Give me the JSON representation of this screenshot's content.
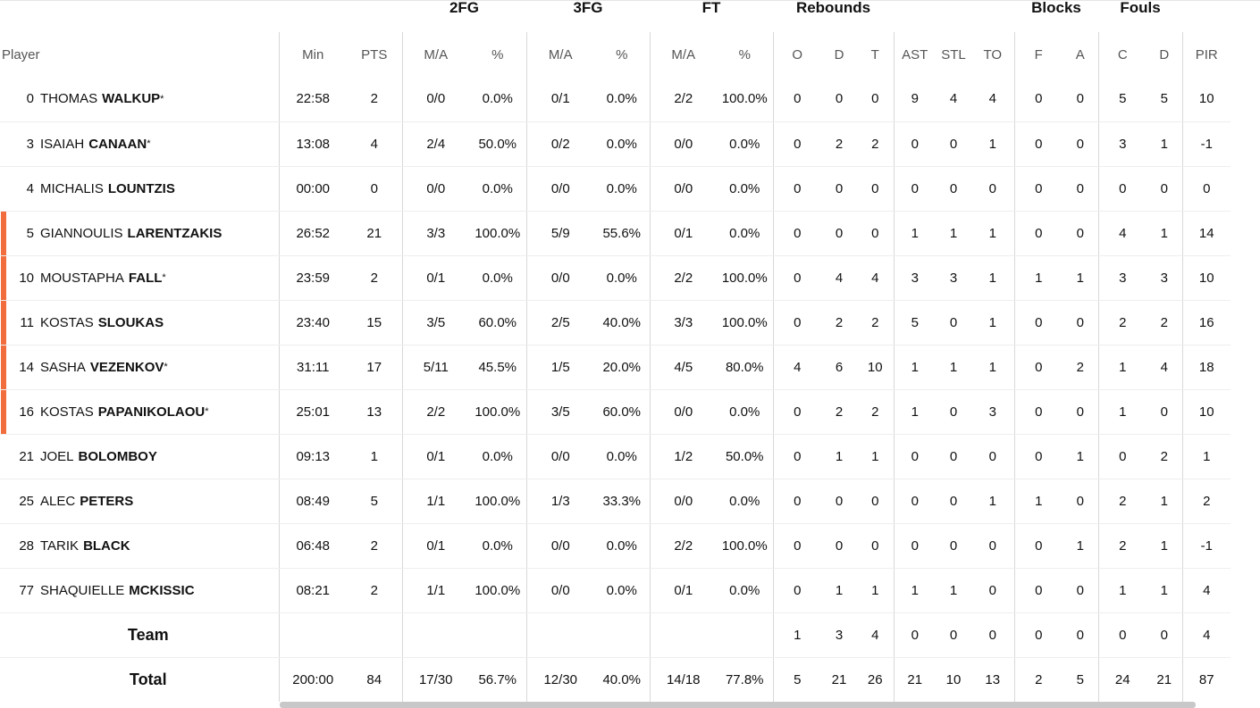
{
  "groups": {
    "fg2": "2FG",
    "fg3": "3FG",
    "ft": "FT",
    "rebounds": "Rebounds",
    "blocks": "Blocks",
    "fouls": "Fouls"
  },
  "headers": {
    "player": "Player",
    "min": "Min",
    "pts": "PTS",
    "ma": "M/A",
    "pct": "%",
    "o": "O",
    "d": "D",
    "t": "T",
    "ast": "AST",
    "stl": "STL",
    "to": "TO",
    "f": "F",
    "a": "A",
    "c": "C",
    "fd": "D",
    "pir": "PIR"
  },
  "players": [
    {
      "num": "0",
      "first": "THOMAS",
      "last": "WALKUP",
      "star": "*",
      "on_court": false,
      "min": "22:58",
      "pts": "2",
      "fg2": "0/0",
      "fg2p": "0.0%",
      "fg3": "0/1",
      "fg3p": "0.0%",
      "ft": "2/2",
      "ftp": "100.0%",
      "o": "0",
      "d": "0",
      "t": "0",
      "ast": "9",
      "stl": "4",
      "to": "4",
      "bf": "0",
      "ba": "0",
      "fc": "5",
      "fd": "5",
      "pir": "10"
    },
    {
      "num": "3",
      "first": "ISAIAH",
      "last": "CANAAN",
      "star": "*",
      "on_court": false,
      "min": "13:08",
      "pts": "4",
      "fg2": "2/4",
      "fg2p": "50.0%",
      "fg3": "0/2",
      "fg3p": "0.0%",
      "ft": "0/0",
      "ftp": "0.0%",
      "o": "0",
      "d": "2",
      "t": "2",
      "ast": "0",
      "stl": "0",
      "to": "1",
      "bf": "0",
      "ba": "0",
      "fc": "3",
      "fd": "1",
      "pir": "-1"
    },
    {
      "num": "4",
      "first": "MICHALIS",
      "last": "LOUNTZIS",
      "star": "",
      "on_court": false,
      "min": "00:00",
      "pts": "0",
      "fg2": "0/0",
      "fg2p": "0.0%",
      "fg3": "0/0",
      "fg3p": "0.0%",
      "ft": "0/0",
      "ftp": "0.0%",
      "o": "0",
      "d": "0",
      "t": "0",
      "ast": "0",
      "stl": "0",
      "to": "0",
      "bf": "0",
      "ba": "0",
      "fc": "0",
      "fd": "0",
      "pir": "0"
    },
    {
      "num": "5",
      "first": "GIANNOULIS",
      "last": "LARENTZAKIS",
      "star": "",
      "on_court": true,
      "min": "26:52",
      "pts": "21",
      "fg2": "3/3",
      "fg2p": "100.0%",
      "fg3": "5/9",
      "fg3p": "55.6%",
      "ft": "0/1",
      "ftp": "0.0%",
      "o": "0",
      "d": "0",
      "t": "0",
      "ast": "1",
      "stl": "1",
      "to": "1",
      "bf": "0",
      "ba": "0",
      "fc": "4",
      "fd": "1",
      "pir": "14"
    },
    {
      "num": "10",
      "first": "MOUSTAPHA",
      "last": "FALL",
      "star": "*",
      "on_court": true,
      "min": "23:59",
      "pts": "2",
      "fg2": "0/1",
      "fg2p": "0.0%",
      "fg3": "0/0",
      "fg3p": "0.0%",
      "ft": "2/2",
      "ftp": "100.0%",
      "o": "0",
      "d": "4",
      "t": "4",
      "ast": "3",
      "stl": "3",
      "to": "1",
      "bf": "1",
      "ba": "1",
      "fc": "3",
      "fd": "3",
      "pir": "10"
    },
    {
      "num": "11",
      "first": "KOSTAS",
      "last": "SLOUKAS",
      "star": "",
      "on_court": true,
      "min": "23:40",
      "pts": "15",
      "fg2": "3/5",
      "fg2p": "60.0%",
      "fg3": "2/5",
      "fg3p": "40.0%",
      "ft": "3/3",
      "ftp": "100.0%",
      "o": "0",
      "d": "2",
      "t": "2",
      "ast": "5",
      "stl": "0",
      "to": "1",
      "bf": "0",
      "ba": "0",
      "fc": "2",
      "fd": "2",
      "pir": "16"
    },
    {
      "num": "14",
      "first": "SASHA",
      "last": "VEZENKOV",
      "star": "*",
      "on_court": true,
      "min": "31:11",
      "pts": "17",
      "fg2": "5/11",
      "fg2p": "45.5%",
      "fg3": "1/5",
      "fg3p": "20.0%",
      "ft": "4/5",
      "ftp": "80.0%",
      "o": "4",
      "d": "6",
      "t": "10",
      "ast": "1",
      "stl": "1",
      "to": "1",
      "bf": "0",
      "ba": "2",
      "fc": "1",
      "fd": "4",
      "pir": "18"
    },
    {
      "num": "16",
      "first": "KOSTAS",
      "last": "PAPANIKOLAOU",
      "star": "*",
      "on_court": true,
      "min": "25:01",
      "pts": "13",
      "fg2": "2/2",
      "fg2p": "100.0%",
      "fg3": "3/5",
      "fg3p": "60.0%",
      "ft": "0/0",
      "ftp": "0.0%",
      "o": "0",
      "d": "2",
      "t": "2",
      "ast": "1",
      "stl": "0",
      "to": "3",
      "bf": "0",
      "ba": "0",
      "fc": "1",
      "fd": "0",
      "pir": "10"
    },
    {
      "num": "21",
      "first": "JOEL",
      "last": "BOLOMBOY",
      "star": "",
      "on_court": false,
      "min": "09:13",
      "pts": "1",
      "fg2": "0/1",
      "fg2p": "0.0%",
      "fg3": "0/0",
      "fg3p": "0.0%",
      "ft": "1/2",
      "ftp": "50.0%",
      "o": "0",
      "d": "1",
      "t": "1",
      "ast": "0",
      "stl": "0",
      "to": "0",
      "bf": "0",
      "ba": "1",
      "fc": "0",
      "fd": "2",
      "pir": "1"
    },
    {
      "num": "25",
      "first": "ALEC",
      "last": "PETERS",
      "star": "",
      "on_court": false,
      "min": "08:49",
      "pts": "5",
      "fg2": "1/1",
      "fg2p": "100.0%",
      "fg3": "1/3",
      "fg3p": "33.3%",
      "ft": "0/0",
      "ftp": "0.0%",
      "o": "0",
      "d": "0",
      "t": "0",
      "ast": "0",
      "stl": "0",
      "to": "1",
      "bf": "1",
      "ba": "0",
      "fc": "2",
      "fd": "1",
      "pir": "2"
    },
    {
      "num": "28",
      "first": "TARIK",
      "last": "BLACK",
      "star": "",
      "on_court": false,
      "min": "06:48",
      "pts": "2",
      "fg2": "0/1",
      "fg2p": "0.0%",
      "fg3": "0/0",
      "fg3p": "0.0%",
      "ft": "2/2",
      "ftp": "100.0%",
      "o": "0",
      "d": "0",
      "t": "0",
      "ast": "0",
      "stl": "0",
      "to": "0",
      "bf": "0",
      "ba": "1",
      "fc": "2",
      "fd": "1",
      "pir": "-1"
    },
    {
      "num": "77",
      "first": "SHAQUIELLE",
      "last": "MCKISSIC",
      "star": "",
      "on_court": false,
      "min": "08:21",
      "pts": "2",
      "fg2": "1/1",
      "fg2p": "100.0%",
      "fg3": "0/0",
      "fg3p": "0.0%",
      "ft": "0/1",
      "ftp": "0.0%",
      "o": "0",
      "d": "1",
      "t": "1",
      "ast": "1",
      "stl": "1",
      "to": "0",
      "bf": "0",
      "ba": "0",
      "fc": "1",
      "fd": "1",
      "pir": "4"
    }
  ],
  "team": {
    "label": "Team",
    "o": "1",
    "d": "3",
    "t": "4",
    "ast": "0",
    "stl": "0",
    "to": "0",
    "bf": "0",
    "ba": "0",
    "fc": "0",
    "fd": "0",
    "pir": "4"
  },
  "total": {
    "label": "Total",
    "min": "200:00",
    "pts": "84",
    "fg2": "17/30",
    "fg2p": "56.7%",
    "fg3": "12/30",
    "fg3p": "40.0%",
    "ft": "14/18",
    "ftp": "77.8%",
    "o": "5",
    "d": "21",
    "t": "26",
    "ast": "21",
    "stl": "10",
    "to": "13",
    "bf": "2",
    "ba": "5",
    "fc": "24",
    "fd": "21",
    "pir": "87"
  },
  "colors": {
    "on_court_bar": "#f26d3d",
    "separator": "#d8d8d8",
    "row_divider": "#eeeeee",
    "scrollbar": "#c8c8c8"
  }
}
